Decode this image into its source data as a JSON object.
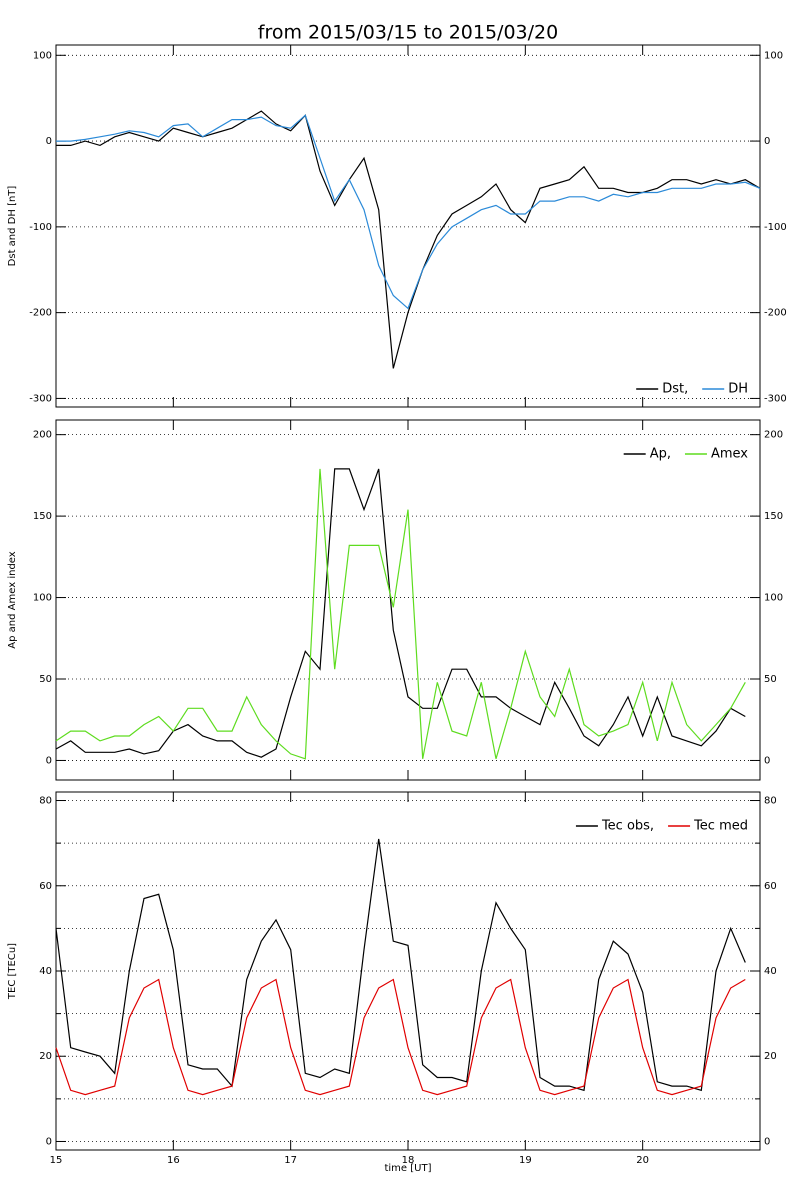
{
  "chart_data": [
    {
      "type": "line",
      "title": "from 2015/03/15 to 2015/03/20",
      "ylabel": "Dst and DH [nT]",
      "xlim": [
        15,
        21
      ],
      "xticks": [
        15,
        16,
        17,
        18,
        19,
        20
      ],
      "xtick_labels": false,
      "ylim": [
        -310,
        112
      ],
      "yticks": [
        -300,
        -200,
        -100,
        0,
        100
      ],
      "grid": true,
      "legend": "lower right",
      "x": [
        15,
        15.125,
        15.25,
        15.375,
        15.5,
        15.625,
        15.75,
        15.875,
        16,
        16.125,
        16.25,
        16.375,
        16.5,
        16.625,
        16.75,
        16.875,
        17,
        17.125,
        17.25,
        17.375,
        17.5,
        17.625,
        17.75,
        17.875,
        18,
        18.125,
        18.25,
        18.375,
        18.5,
        18.625,
        18.75,
        18.875,
        19,
        19.125,
        19.25,
        19.375,
        19.5,
        19.625,
        19.75,
        19.875,
        20,
        20.125,
        20.25,
        20.375,
        20.5,
        20.625,
        20.75,
        20.875,
        21
      ],
      "series": [
        {
          "name": "Dst,",
          "color": "#000000",
          "values": [
            -5,
            -5,
            0,
            -5,
            5,
            10,
            5,
            0,
            15,
            10,
            5,
            10,
            15,
            25,
            35,
            20,
            12,
            30,
            -35,
            -75,
            -45,
            -20,
            -80,
            -265,
            -200,
            -150,
            -110,
            -85,
            -75,
            -65,
            -50,
            -80,
            -95,
            -55,
            -50,
            -45,
            -30,
            -55,
            -55,
            -60,
            -60,
            -55,
            -45,
            -45,
            -50,
            -45,
            -50,
            -45,
            -55
          ]
        },
        {
          "name": "DH",
          "color": "#2b8ad8",
          "values": [
            0,
            0,
            2,
            5,
            8,
            12,
            10,
            5,
            18,
            20,
            5,
            15,
            25,
            25,
            28,
            18,
            15,
            30,
            -20,
            -70,
            -45,
            -80,
            -145,
            -180,
            -195,
            -150,
            -120,
            -100,
            -90,
            -80,
            -75,
            -85,
            -85,
            -70,
            -70,
            -65,
            -65,
            -70,
            -62,
            -65,
            -60,
            -60,
            -55,
            -55,
            -55,
            -50,
            -50,
            -48,
            -55
          ]
        }
      ]
    },
    {
      "type": "line",
      "ylabel": "Ap and Amex index",
      "xlim": [
        15,
        21
      ],
      "xticks": [
        15,
        16,
        17,
        18,
        19,
        20
      ],
      "xtick_labels": false,
      "ylim": [
        -12,
        209
      ],
      "yticks": [
        0,
        50,
        100,
        150,
        200
      ],
      "grid": true,
      "legend": "upper right",
      "x": [
        15,
        15.125,
        15.25,
        15.375,
        15.5,
        15.625,
        15.75,
        15.875,
        16,
        16.125,
        16.25,
        16.375,
        16.5,
        16.625,
        16.75,
        16.875,
        17,
        17.125,
        17.25,
        17.375,
        17.5,
        17.625,
        17.75,
        17.875,
        18,
        18.125,
        18.25,
        18.375,
        18.5,
        18.625,
        18.75,
        18.875,
        19,
        19.125,
        19.25,
        19.375,
        19.5,
        19.625,
        19.75,
        19.875,
        20,
        20.125,
        20.25,
        20.375,
        20.5,
        20.625,
        20.75,
        20.875
      ],
      "series": [
        {
          "name": "Ap,",
          "color": "#000000",
          "values": [
            7,
            12,
            5,
            5,
            5,
            7,
            4,
            6,
            18,
            22,
            15,
            12,
            12,
            5,
            2,
            7,
            39,
            67,
            56,
            179,
            179,
            154,
            179,
            80,
            39,
            32,
            32,
            56,
            56,
            39,
            39,
            32,
            27,
            22,
            48,
            32,
            15,
            9,
            22,
            39,
            15,
            39,
            15,
            12,
            9,
            18,
            32,
            27
          ]
        },
        {
          "name": "Amex",
          "color": "#5edc1f",
          "values": [
            12,
            18,
            18,
            12,
            15,
            15,
            22,
            27,
            18,
            32,
            32,
            18,
            18,
            39,
            22,
            12,
            4,
            1,
            179,
            56,
            132,
            132,
            132,
            94,
            154,
            1,
            48,
            18,
            15,
            48,
            1,
            32,
            67,
            39,
            27,
            56,
            22,
            15,
            18,
            22,
            48,
            12,
            48,
            22,
            12,
            22,
            32,
            48
          ]
        }
      ]
    },
    {
      "type": "line",
      "ylabel": "TEC [TECu]",
      "xlabel": "time [UT]",
      "xlim": [
        15,
        21
      ],
      "xticks": [
        15,
        16,
        17,
        18,
        19,
        20
      ],
      "xtick_labels": true,
      "ylim": [
        -2,
        82
      ],
      "yticks": [
        0,
        20,
        40,
        60,
        80
      ],
      "ygrid_minor": [
        10,
        30,
        50,
        70
      ],
      "grid": true,
      "legend": "upper right",
      "x": [
        15,
        15.125,
        15.25,
        15.375,
        15.5,
        15.625,
        15.75,
        15.875,
        16,
        16.125,
        16.25,
        16.375,
        16.5,
        16.625,
        16.75,
        16.875,
        17,
        17.125,
        17.25,
        17.375,
        17.5,
        17.625,
        17.75,
        17.875,
        18,
        18.125,
        18.25,
        18.375,
        18.5,
        18.625,
        18.75,
        18.875,
        19,
        19.125,
        19.25,
        19.375,
        19.5,
        19.625,
        19.75,
        19.875,
        20,
        20.125,
        20.25,
        20.375,
        20.5,
        20.625,
        20.75,
        20.875
      ],
      "series": [
        {
          "name": "Tec obs,",
          "color": "#000000",
          "values": [
            50,
            22,
            21,
            20,
            16,
            40,
            57,
            58,
            45,
            18,
            17,
            17,
            13,
            38,
            47,
            52,
            45,
            16,
            15,
            17,
            16,
            45,
            71,
            47,
            46,
            18,
            15,
            15,
            14,
            40,
            56,
            50,
            45,
            15,
            13,
            13,
            12,
            38,
            47,
            44,
            35,
            14,
            13,
            13,
            12,
            40,
            50,
            42
          ]
        },
        {
          "name": "Tec med",
          "color": "#e00000",
          "values": [
            22,
            12,
            11,
            12,
            13,
            29,
            36,
            38,
            22,
            12,
            11,
            12,
            13,
            29,
            36,
            38,
            22,
            12,
            11,
            12,
            13,
            29,
            36,
            38,
            22,
            12,
            11,
            12,
            13,
            29,
            36,
            38,
            22,
            12,
            11,
            12,
            13,
            29,
            36,
            38,
            22,
            12,
            11,
            12,
            13,
            29,
            36,
            38
          ]
        }
      ]
    }
  ]
}
